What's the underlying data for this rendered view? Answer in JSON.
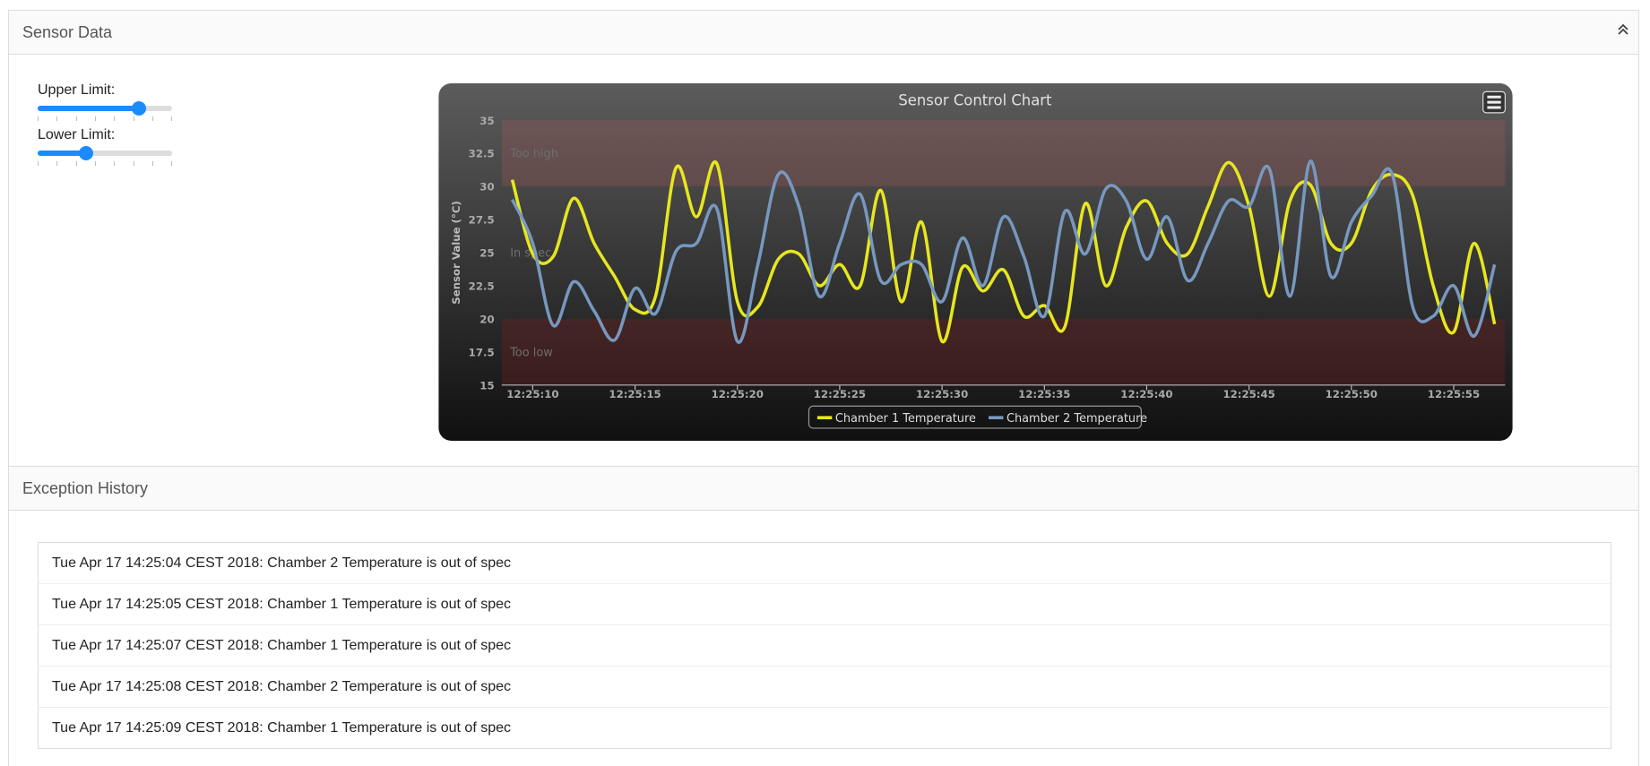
{
  "panels": {
    "sensor": "Sensor Data",
    "exceptions": "Exception History"
  },
  "sliders": [
    {
      "label": "Upper Limit:",
      "value": 75,
      "min": 0,
      "max": 100
    },
    {
      "label": "Lower Limit:",
      "value": 36,
      "min": 0,
      "max": 100
    }
  ],
  "chart_data": {
    "type": "line",
    "title": "Sensor Control Chart",
    "y_label": "Sensor Value (°C)",
    "x": [
      "12:25:09",
      "12:25:10",
      "12:25:11",
      "12:25:12",
      "12:25:13",
      "12:25:14",
      "12:25:15",
      "12:25:16",
      "12:25:17",
      "12:25:18",
      "12:25:19",
      "12:25:20",
      "12:25:21",
      "12:25:22",
      "12:25:23",
      "12:25:24",
      "12:25:25",
      "12:25:26",
      "12:25:27",
      "12:25:28",
      "12:25:29",
      "12:25:30",
      "12:25:31",
      "12:25:32",
      "12:25:33",
      "12:25:34",
      "12:25:35",
      "12:25:36",
      "12:25:37",
      "12:25:38",
      "12:25:39",
      "12:25:40",
      "12:25:41",
      "12:25:42",
      "12:25:43",
      "12:25:44",
      "12:25:45",
      "12:25:46",
      "12:25:47",
      "12:25:48",
      "12:25:49",
      "12:25:50",
      "12:25:51",
      "12:25:52",
      "12:25:53",
      "12:25:54",
      "12:25:55",
      "12:25:56",
      "12:25:57"
    ],
    "series": [
      {
        "name": "Chamber 1 Temperature",
        "color": "#e6e620",
        "values": [
          30.5,
          24.9,
          24.7,
          29.1,
          25.7,
          23.2,
          20.7,
          21.7,
          31.4,
          27.7,
          31.7,
          21.3,
          20.9,
          24.5,
          24.9,
          22.5,
          24.1,
          22.5,
          29.7,
          21.3,
          27.3,
          18.3,
          23.9,
          22.1,
          23.7,
          20.2,
          21.0,
          19.4,
          28.7,
          22.5,
          26.9,
          28.9,
          25.7,
          24.9,
          28.5,
          31.8,
          28.5,
          21.7,
          28.9,
          30.1,
          25.7,
          25.7,
          29.7,
          30.9,
          29.3,
          22.5,
          19.0,
          25.7,
          19.6
        ]
      },
      {
        "name": "Chamber 2 Temperature",
        "color": "#7798bf",
        "values": [
          29.0,
          25.7,
          19.5,
          22.8,
          20.6,
          18.4,
          22.3,
          20.4,
          25.1,
          25.7,
          28.3,
          18.3,
          24.1,
          30.9,
          28.5,
          21.7,
          25.7,
          29.4,
          22.9,
          24.1,
          24.1,
          21.3,
          26.1,
          22.5,
          27.7,
          24.7,
          20.2,
          28.1,
          24.9,
          29.8,
          28.9,
          24.5,
          27.7,
          22.9,
          25.7,
          28.9,
          28.5,
          31.3,
          21.7,
          31.9,
          23.2,
          27.3,
          29.3,
          30.9,
          20.9,
          20.2,
          22.5,
          18.7,
          24.1
        ]
      }
    ],
    "xlim": [
      "12:25:09",
      "12:25:57"
    ],
    "xticks": [
      "12:25:10",
      "12:25:15",
      "12:25:20",
      "12:25:25",
      "12:25:30",
      "12:25:35",
      "12:25:40",
      "12:25:45",
      "12:25:50",
      "12:25:55"
    ],
    "ylim": [
      15,
      35
    ],
    "yticks": [
      15,
      17.5,
      20,
      22.5,
      25,
      27.5,
      30,
      32.5,
      35
    ],
    "bands": [
      {
        "from": 30,
        "to": 35,
        "label": "Too high",
        "color": "rgba(190,90,90,0.22)"
      },
      {
        "from": 20,
        "to": 30,
        "label": "In spec",
        "color": "rgba(0,0,0,0)"
      },
      {
        "from": 15,
        "to": 20,
        "label": "Too low",
        "color": "rgba(130,30,30,0.3)"
      }
    ],
    "legend": "bottom"
  },
  "exceptions": [
    "Tue Apr 17 14:25:04 CEST 2018: Chamber 2 Temperature is out of spec",
    "Tue Apr 17 14:25:05 CEST 2018: Chamber 1 Temperature is out of spec",
    "Tue Apr 17 14:25:07 CEST 2018: Chamber 1 Temperature is out of spec",
    "Tue Apr 17 14:25:08 CEST 2018: Chamber 2 Temperature is out of spec",
    "Tue Apr 17 14:25:09 CEST 2018: Chamber 1 Temperature is out of spec"
  ]
}
